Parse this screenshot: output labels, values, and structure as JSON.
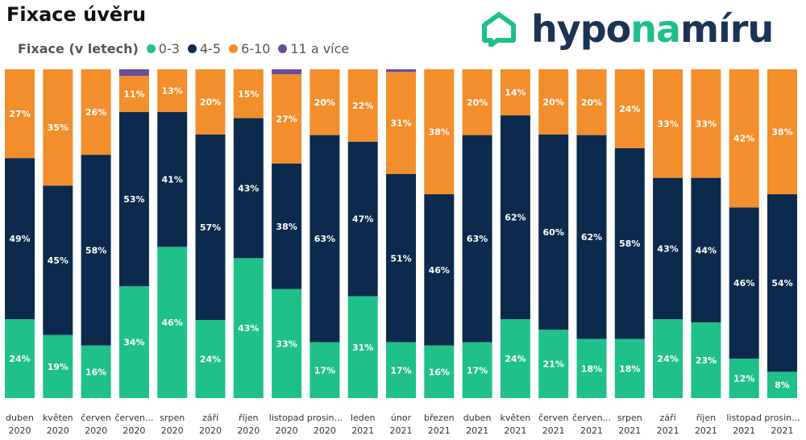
{
  "header": {
    "title": "Fixace úvěru"
  },
  "logo": {
    "part1": "hypo",
    "part2": "na",
    "part3": "míru"
  },
  "chart_data": {
    "type": "bar",
    "stacked": true,
    "normalized": true,
    "title": "Fixace úvěru",
    "legend": {
      "title": "Fixace (v letech)",
      "position": "top-left"
    },
    "categories": [
      [
        "duben",
        "2020"
      ],
      [
        "květen",
        "2020"
      ],
      [
        "červen",
        "2020"
      ],
      [
        "červen...",
        "2020"
      ],
      [
        "srpen",
        "2020"
      ],
      [
        "září",
        "2020"
      ],
      [
        "říjen",
        "2020"
      ],
      [
        "listopad",
        "2020"
      ],
      [
        "prosin...",
        "2020"
      ],
      [
        "leden",
        "2021"
      ],
      [
        "únor",
        "2021"
      ],
      [
        "březen",
        "2021"
      ],
      [
        "duben",
        "2021"
      ],
      [
        "květen",
        "2021"
      ],
      [
        "červen",
        "2021"
      ],
      [
        "červen...",
        "2021"
      ],
      [
        "srpen",
        "2021"
      ],
      [
        "září",
        "2021"
      ],
      [
        "říjen",
        "2021"
      ],
      [
        "listopad",
        "2021"
      ],
      [
        "prosin...",
        "2021"
      ]
    ],
    "series": [
      {
        "name": "0-3",
        "color": "#20c08a",
        "values": [
          24,
          19,
          16,
          34,
          46,
          24,
          43,
          33,
          17,
          31,
          17,
          16,
          17,
          24,
          21,
          18,
          18,
          24,
          23,
          12,
          8
        ]
      },
      {
        "name": "4-5",
        "color": "#0b2a4d",
        "values": [
          49,
          45,
          58,
          53,
          41,
          57,
          43,
          38,
          63,
          47,
          51,
          46,
          63,
          62,
          60,
          62,
          58,
          43,
          44,
          46,
          54
        ]
      },
      {
        "name": "6-10",
        "color": "#f28e2b",
        "values": [
          27,
          35,
          26,
          11,
          13,
          20,
          15,
          27,
          20,
          22,
          31,
          38,
          20,
          14,
          20,
          20,
          24,
          33,
          33,
          42,
          38
        ]
      },
      {
        "name": "11 a více",
        "color": "#6b4c9a",
        "values": [
          0,
          0,
          0,
          2,
          0,
          0,
          0,
          1.5,
          0,
          0,
          0.8,
          0,
          0,
          0,
          0,
          0,
          0,
          0,
          0,
          0,
          0
        ]
      }
    ],
    "data_labels_shown_for": [
      "0-3",
      "4-5",
      "6-10"
    ],
    "ylim": [
      0,
      100
    ],
    "grid": false
  }
}
